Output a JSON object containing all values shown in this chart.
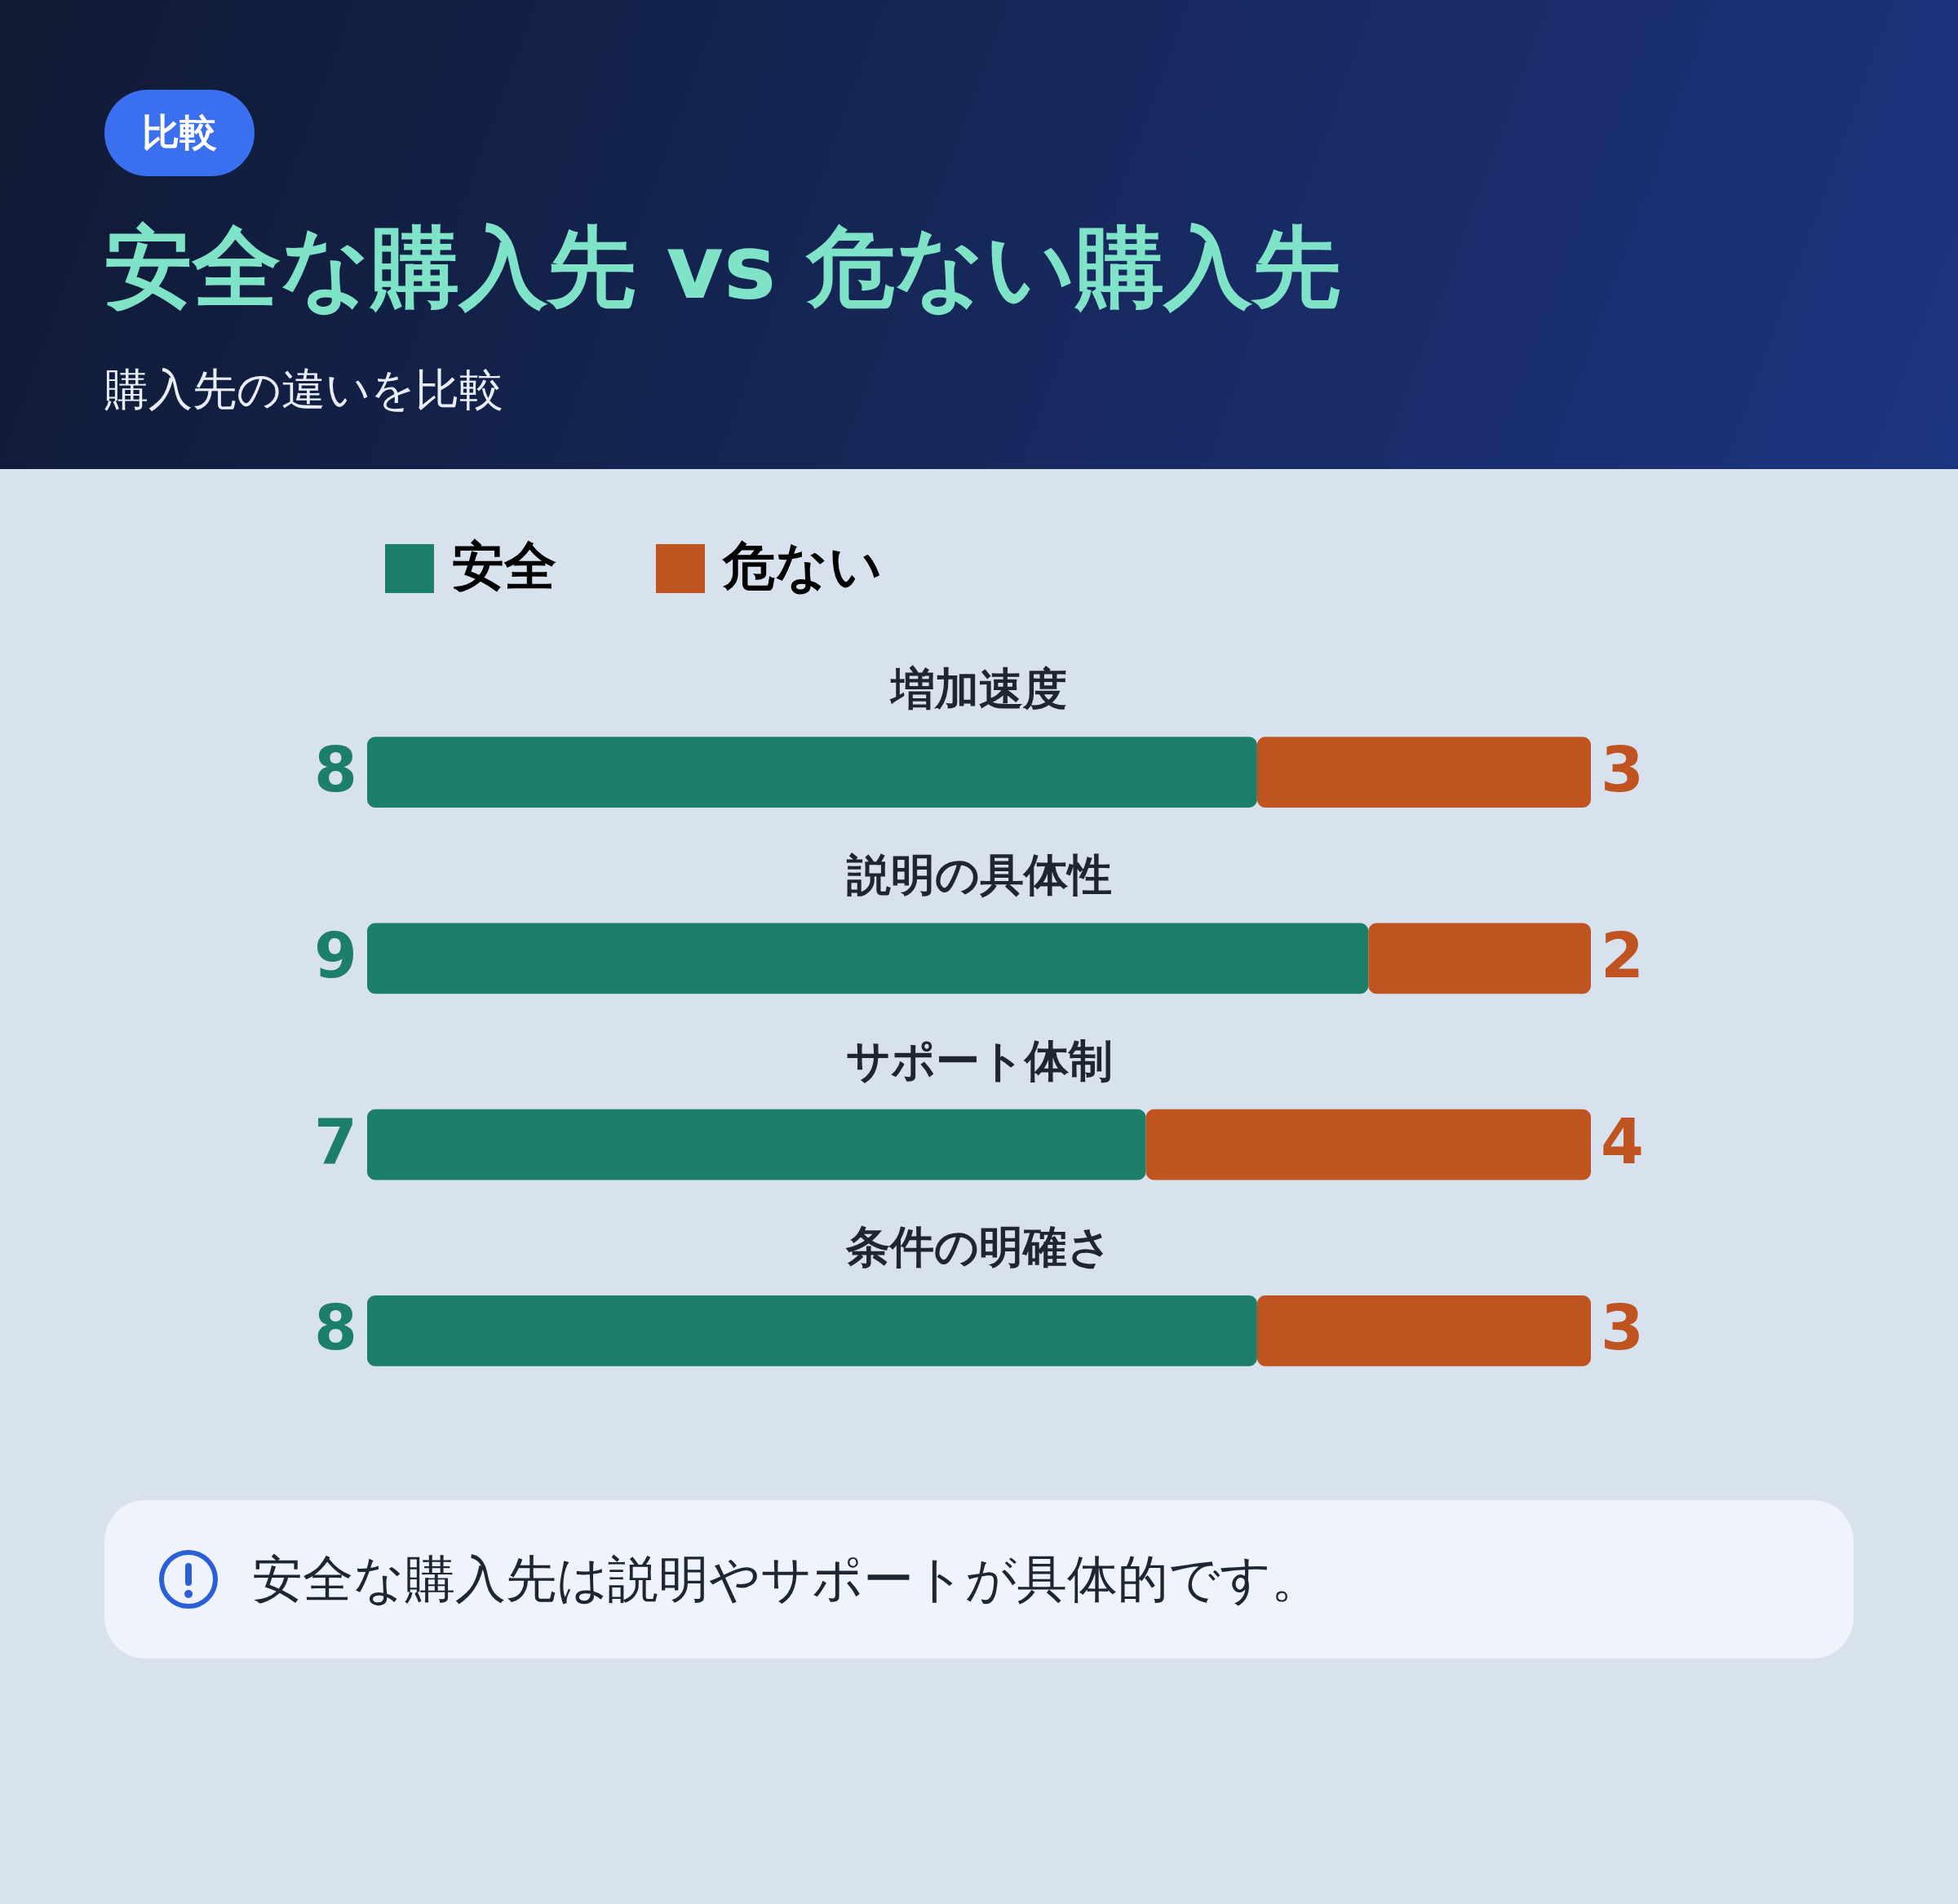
{
  "chart_data": {
    "type": "bar",
    "orientation": "horizontal",
    "stacked": true,
    "title": "安全な購入先 vs 危ない購入先",
    "subtitle": "購入先の違いを比較",
    "categories": [
      "増加速度",
      "説明の具体性",
      "サポート体制",
      "条件の明確さ"
    ],
    "series": [
      {
        "name": "安全",
        "color": "#1b7f6a",
        "values": [
          8,
          9,
          7,
          8
        ]
      },
      {
        "name": "危ない",
        "color": "#c05421",
        "values": [
          3,
          2,
          4,
          3
        ]
      }
    ],
    "data_labels": true,
    "legend": "top",
    "annotations": [
      "比較",
      "安全な購入先は説明やサポートが具体的です。"
    ]
  }
}
